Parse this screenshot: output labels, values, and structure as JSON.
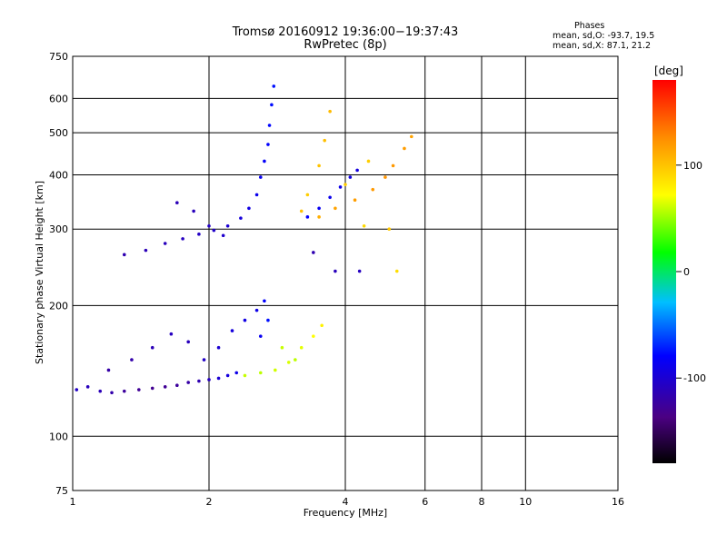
{
  "titles": {
    "line1": "Tromsø 20160912 19:36:00−19:37:43",
    "line2": "RwPretec (8p)"
  },
  "stats": {
    "heading": "Phases",
    "line_o": "mean, sd,O: -93.7, 19.5",
    "line_x": "mean, sd,X:  87.1, 21.2"
  },
  "colorbar": {
    "unit": "[deg]",
    "ticks": [
      "100",
      "0",
      "-100"
    ]
  },
  "colors": {
    "grid": "#000000",
    "background": "#ffffff"
  },
  "chart_data": {
    "type": "scatter",
    "title": "Tromsø 20160912 19:36:00−19:37:43",
    "subtitle": "RwPretec (8p)",
    "xlabel": "Frequency [MHz]",
    "ylabel": "Stationary phase Virtual Height [km]",
    "x_scale": "log",
    "y_scale": "log",
    "xlim": [
      1,
      16
    ],
    "ylim": [
      75,
      750
    ],
    "x_ticks": [
      "1",
      "2",
      "4",
      "6",
      "8",
      "10",
      "16"
    ],
    "y_ticks": [
      "75",
      "100",
      "200",
      "300",
      "400",
      "500",
      "600",
      "750"
    ],
    "color_range": [
      -180,
      180
    ],
    "series": [
      {
        "name": "O",
        "values": [
          [
            1.02,
            128,
            -105
          ],
          [
            1.08,
            130,
            -110
          ],
          [
            1.15,
            127,
            -112
          ],
          [
            1.22,
            126,
            -118
          ],
          [
            1.3,
            127,
            -125
          ],
          [
            1.4,
            128,
            -128
          ],
          [
            1.5,
            129,
            -130
          ],
          [
            1.6,
            130,
            -128
          ],
          [
            1.7,
            131,
            -125
          ],
          [
            1.8,
            133,
            -120
          ],
          [
            1.9,
            134,
            -115
          ],
          [
            2.0,
            135,
            -108
          ],
          [
            2.1,
            136,
            -100
          ],
          [
            2.2,
            138,
            -95
          ],
          [
            2.3,
            140,
            -90
          ],
          [
            1.2,
            142,
            -120
          ],
          [
            1.35,
            150,
            -118
          ],
          [
            1.5,
            160,
            -112
          ],
          [
            1.65,
            172,
            -108
          ],
          [
            1.8,
            165,
            -110
          ],
          [
            1.95,
            150,
            -105
          ],
          [
            2.1,
            160,
            -100
          ],
          [
            2.25,
            175,
            -95
          ],
          [
            2.4,
            185,
            -92
          ],
          [
            2.55,
            195,
            -90
          ],
          [
            2.65,
            205,
            -80
          ],
          [
            2.7,
            185,
            -75
          ],
          [
            2.6,
            170,
            -85
          ],
          [
            1.3,
            262,
            -115
          ],
          [
            1.45,
            268,
            -112
          ],
          [
            1.6,
            278,
            -110
          ],
          [
            1.75,
            285,
            -108
          ],
          [
            1.9,
            292,
            -106
          ],
          [
            2.05,
            298,
            -104
          ],
          [
            2.2,
            305,
            -100
          ],
          [
            2.35,
            318,
            -96
          ],
          [
            2.45,
            335,
            -92
          ],
          [
            2.55,
            360,
            -88
          ],
          [
            2.6,
            395,
            -85
          ],
          [
            2.65,
            430,
            -82
          ],
          [
            2.7,
            470,
            -80
          ],
          [
            2.72,
            520,
            -78
          ],
          [
            2.75,
            580,
            -76
          ],
          [
            2.78,
            640,
            -75
          ],
          [
            1.7,
            345,
            -112
          ],
          [
            1.85,
            330,
            -110
          ],
          [
            2.0,
            305,
            -105
          ],
          [
            2.15,
            290,
            -102
          ],
          [
            3.3,
            320,
            -80
          ],
          [
            3.5,
            335,
            -85
          ],
          [
            3.7,
            355,
            -88
          ],
          [
            3.9,
            375,
            -90
          ],
          [
            4.1,
            395,
            -92
          ],
          [
            4.25,
            410,
            -95
          ],
          [
            3.8,
            240,
            -110
          ],
          [
            4.3,
            240,
            -108
          ],
          [
            3.4,
            265,
            -115
          ]
        ]
      },
      {
        "name": "X",
        "values": [
          [
            2.4,
            138,
            60
          ],
          [
            2.6,
            140,
            58
          ],
          [
            2.8,
            142,
            62
          ],
          [
            3.0,
            148,
            64
          ],
          [
            3.2,
            160,
            66
          ],
          [
            3.4,
            170,
            72
          ],
          [
            3.55,
            180,
            78
          ],
          [
            2.9,
            160,
            60
          ],
          [
            3.1,
            150,
            58
          ],
          [
            3.2,
            330,
            100
          ],
          [
            3.5,
            320,
            110
          ],
          [
            3.8,
            335,
            115
          ],
          [
            4.2,
            350,
            118
          ],
          [
            4.6,
            370,
            120
          ],
          [
            4.9,
            395,
            122
          ],
          [
            5.1,
            420,
            120
          ],
          [
            5.4,
            460,
            118
          ],
          [
            5.6,
            490,
            115
          ],
          [
            3.3,
            360,
            95
          ],
          [
            3.5,
            420,
            100
          ],
          [
            3.6,
            480,
            102
          ],
          [
            3.7,
            560,
            104
          ],
          [
            4.0,
            380,
            96
          ],
          [
            4.5,
            430,
            95
          ],
          [
            5.0,
            300,
            98
          ],
          [
            4.4,
            305,
            90
          ],
          [
            5.2,
            240,
            88
          ]
        ]
      }
    ]
  }
}
